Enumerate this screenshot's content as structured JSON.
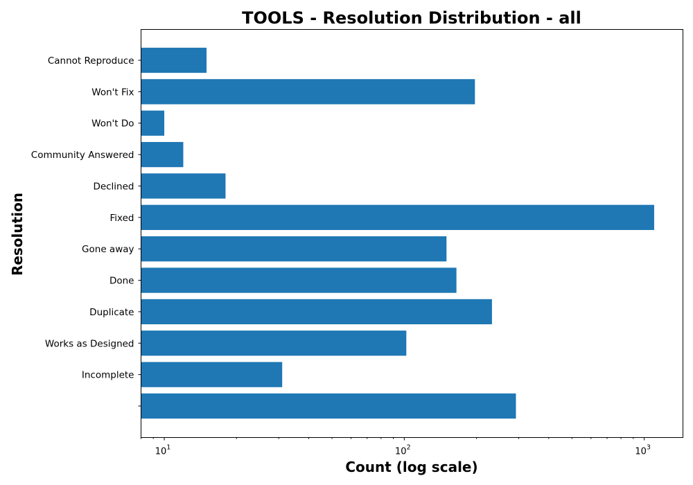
{
  "chart_data": {
    "type": "bar",
    "orientation": "horizontal",
    "title": "TOOLS - Resolution Distribution - all",
    "xlabel": "Count (log scale)",
    "ylabel": "Resolution",
    "x_scale": "log",
    "xlim": [
      8,
      1450
    ],
    "grid": false,
    "bar_color": "#1f77b4",
    "x_ticks": [
      {
        "value": 10,
        "base": "10",
        "exp": "1"
      },
      {
        "value": 100,
        "base": "10",
        "exp": "2"
      },
      {
        "value": 1000,
        "base": "10",
        "exp": "3"
      }
    ],
    "categories": [
      "Cannot Reproduce",
      "Won't Fix",
      "Won't Do",
      "Community Answered",
      "Declined",
      "Fixed",
      "Gone away",
      "Done",
      "Duplicate",
      "Works as Designed",
      "Incomplete",
      ""
    ],
    "values": [
      15,
      197,
      10,
      12,
      18,
      1100,
      150,
      165,
      232,
      102,
      31,
      292
    ]
  }
}
